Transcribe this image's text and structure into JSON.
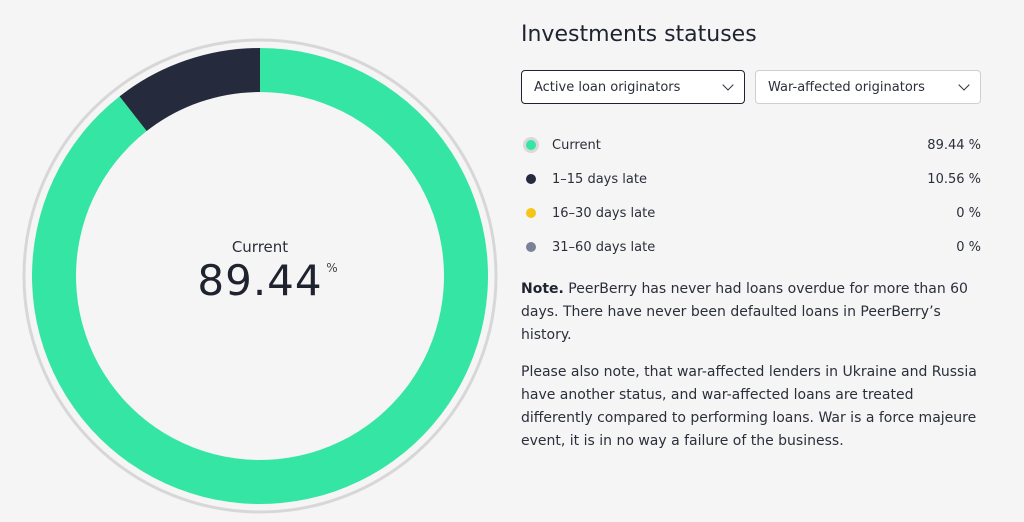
{
  "chart_data": {
    "type": "pie",
    "categories": [
      "Current",
      "1-15 days late",
      "16-30 days late",
      "31-60 days late"
    ],
    "values": [
      89.44,
      10.56,
      0,
      0
    ],
    "colors": [
      "#35e5a3",
      "#252a3d",
      "#f5c518",
      "#7b8196"
    ]
  },
  "center": {
    "label": "Current",
    "value": "89.44",
    "unit": "%"
  },
  "panel": {
    "title": "Investments statuses",
    "selects": [
      {
        "label": "Active loan originators",
        "active": true
      },
      {
        "label": "War-affected originators",
        "active": false
      }
    ],
    "legend": [
      {
        "label": "Current",
        "value": "89.44 %",
        "color": "#35e5a3"
      },
      {
        "label": "1–15 days late",
        "value": "10.56 %",
        "color": "#252a3d"
      },
      {
        "label": "16–30 days late",
        "value": "0 %",
        "color": "#f5c518"
      },
      {
        "label": "31–60 days late",
        "value": "0 %",
        "color": "#7b8196"
      }
    ],
    "note_bold": "Note.",
    "note_text": " PeerBerry has never had loans overdue for more than 60 days. There have never been defaulted loans in PeerBerry’s history.",
    "note2": "Please also note, that war-affected lenders in Ukraine and Russia have another status, and war-affected loans are treated differently compared to performing loans. War is a force majeure event, it is in no way a failure of the business."
  }
}
